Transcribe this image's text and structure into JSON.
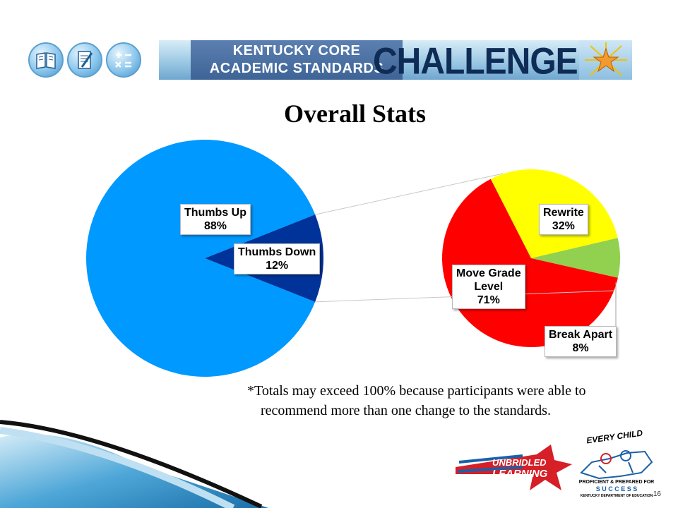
{
  "banner": {
    "line1": "KENTUCKY CORE",
    "line2": "ACADEMIC STANDARDS",
    "challenge": "CHALLENGE",
    "icons": [
      "book-icon",
      "notebook-icon",
      "math-symbols-icon",
      "sunburst-star-icon"
    ]
  },
  "title": "Overall Stats",
  "chart_data": {
    "type": "pie",
    "charts": [
      {
        "slices": [
          {
            "label": "Thumbs Up",
            "value_text": "88%",
            "value": 88,
            "color": "#0099ff"
          },
          {
            "label": "Thumbs Down",
            "value_text": "12%",
            "value": 12,
            "color": "#003399"
          }
        ]
      },
      {
        "exploded_from": "Thumbs Down",
        "slices": [
          {
            "label": "Rewrite",
            "value_text": "32%",
            "value": 32,
            "color": "#ffff00"
          },
          {
            "label": "Break Apart",
            "value_text": "8%",
            "value": 8,
            "color": "#92d050"
          },
          {
            "label": "Move Grade Level",
            "value_text": "71%",
            "value": 71,
            "color": "#ff0000"
          }
        ]
      }
    ]
  },
  "labels": {
    "thumbs_up": {
      "line1": "Thumbs Up",
      "line2": "88%"
    },
    "thumbs_down": {
      "line1": "Thumbs Down",
      "line2": "12%"
    },
    "rewrite": {
      "line1": "Rewrite",
      "line2": "32%"
    },
    "move_grade": {
      "line1": "Move Grade",
      "line2": "Level",
      "line3": "71%"
    },
    "break_apart": {
      "line1": "Break Apart",
      "line2": "8%"
    }
  },
  "footnote": {
    "line1": "*Totals may exceed 100% because participants were able to",
    "line2": "recommend more than one change to the standards."
  },
  "footer": {
    "unbridled": {
      "line1": "UNBRIDLED",
      "line2": "LEARNING"
    },
    "every_child": "EVERY CHILD",
    "pp_line": "PROFICIENT & PREPARED FOR",
    "success": "S U C C E S S",
    "kde": "KENTUCKY DEPARTMENT OF EDUCATION",
    "slide_number": "16"
  }
}
